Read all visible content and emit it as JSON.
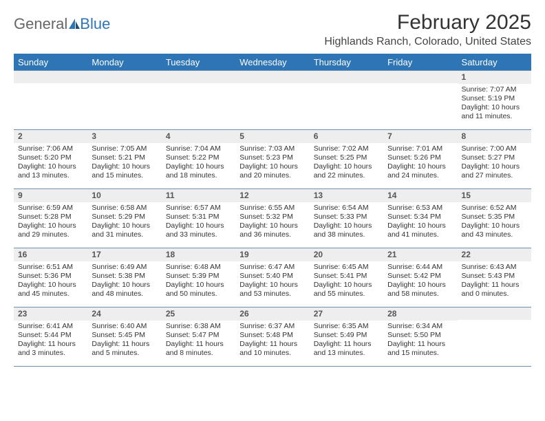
{
  "logo": {
    "text1": "General",
    "text2": "Blue"
  },
  "title": "February 2025",
  "location": "Highlands Ranch, Colorado, United States",
  "colors": {
    "header_bg": "#2e75b6",
    "header_text": "#ffffff",
    "row_border": "#6f8fae",
    "daynum_bg": "#eeeeee",
    "page_bg": "#ffffff",
    "text": "#333333"
  },
  "weekdays": [
    "Sunday",
    "Monday",
    "Tuesday",
    "Wednesday",
    "Thursday",
    "Friday",
    "Saturday"
  ],
  "weeks": [
    [
      {
        "n": "",
        "sunrise": "",
        "sunset": "",
        "daylight": ""
      },
      {
        "n": "",
        "sunrise": "",
        "sunset": "",
        "daylight": ""
      },
      {
        "n": "",
        "sunrise": "",
        "sunset": "",
        "daylight": ""
      },
      {
        "n": "",
        "sunrise": "",
        "sunset": "",
        "daylight": ""
      },
      {
        "n": "",
        "sunrise": "",
        "sunset": "",
        "daylight": ""
      },
      {
        "n": "",
        "sunrise": "",
        "sunset": "",
        "daylight": ""
      },
      {
        "n": "1",
        "sunrise": "Sunrise: 7:07 AM",
        "sunset": "Sunset: 5:19 PM",
        "daylight": "Daylight: 10 hours and 11 minutes."
      }
    ],
    [
      {
        "n": "2",
        "sunrise": "Sunrise: 7:06 AM",
        "sunset": "Sunset: 5:20 PM",
        "daylight": "Daylight: 10 hours and 13 minutes."
      },
      {
        "n": "3",
        "sunrise": "Sunrise: 7:05 AM",
        "sunset": "Sunset: 5:21 PM",
        "daylight": "Daylight: 10 hours and 15 minutes."
      },
      {
        "n": "4",
        "sunrise": "Sunrise: 7:04 AM",
        "sunset": "Sunset: 5:22 PM",
        "daylight": "Daylight: 10 hours and 18 minutes."
      },
      {
        "n": "5",
        "sunrise": "Sunrise: 7:03 AM",
        "sunset": "Sunset: 5:23 PM",
        "daylight": "Daylight: 10 hours and 20 minutes."
      },
      {
        "n": "6",
        "sunrise": "Sunrise: 7:02 AM",
        "sunset": "Sunset: 5:25 PM",
        "daylight": "Daylight: 10 hours and 22 minutes."
      },
      {
        "n": "7",
        "sunrise": "Sunrise: 7:01 AM",
        "sunset": "Sunset: 5:26 PM",
        "daylight": "Daylight: 10 hours and 24 minutes."
      },
      {
        "n": "8",
        "sunrise": "Sunrise: 7:00 AM",
        "sunset": "Sunset: 5:27 PM",
        "daylight": "Daylight: 10 hours and 27 minutes."
      }
    ],
    [
      {
        "n": "9",
        "sunrise": "Sunrise: 6:59 AM",
        "sunset": "Sunset: 5:28 PM",
        "daylight": "Daylight: 10 hours and 29 minutes."
      },
      {
        "n": "10",
        "sunrise": "Sunrise: 6:58 AM",
        "sunset": "Sunset: 5:29 PM",
        "daylight": "Daylight: 10 hours and 31 minutes."
      },
      {
        "n": "11",
        "sunrise": "Sunrise: 6:57 AM",
        "sunset": "Sunset: 5:31 PM",
        "daylight": "Daylight: 10 hours and 33 minutes."
      },
      {
        "n": "12",
        "sunrise": "Sunrise: 6:55 AM",
        "sunset": "Sunset: 5:32 PM",
        "daylight": "Daylight: 10 hours and 36 minutes."
      },
      {
        "n": "13",
        "sunrise": "Sunrise: 6:54 AM",
        "sunset": "Sunset: 5:33 PM",
        "daylight": "Daylight: 10 hours and 38 minutes."
      },
      {
        "n": "14",
        "sunrise": "Sunrise: 6:53 AM",
        "sunset": "Sunset: 5:34 PM",
        "daylight": "Daylight: 10 hours and 41 minutes."
      },
      {
        "n": "15",
        "sunrise": "Sunrise: 6:52 AM",
        "sunset": "Sunset: 5:35 PM",
        "daylight": "Daylight: 10 hours and 43 minutes."
      }
    ],
    [
      {
        "n": "16",
        "sunrise": "Sunrise: 6:51 AM",
        "sunset": "Sunset: 5:36 PM",
        "daylight": "Daylight: 10 hours and 45 minutes."
      },
      {
        "n": "17",
        "sunrise": "Sunrise: 6:49 AM",
        "sunset": "Sunset: 5:38 PM",
        "daylight": "Daylight: 10 hours and 48 minutes."
      },
      {
        "n": "18",
        "sunrise": "Sunrise: 6:48 AM",
        "sunset": "Sunset: 5:39 PM",
        "daylight": "Daylight: 10 hours and 50 minutes."
      },
      {
        "n": "19",
        "sunrise": "Sunrise: 6:47 AM",
        "sunset": "Sunset: 5:40 PM",
        "daylight": "Daylight: 10 hours and 53 minutes."
      },
      {
        "n": "20",
        "sunrise": "Sunrise: 6:45 AM",
        "sunset": "Sunset: 5:41 PM",
        "daylight": "Daylight: 10 hours and 55 minutes."
      },
      {
        "n": "21",
        "sunrise": "Sunrise: 6:44 AM",
        "sunset": "Sunset: 5:42 PM",
        "daylight": "Daylight: 10 hours and 58 minutes."
      },
      {
        "n": "22",
        "sunrise": "Sunrise: 6:43 AM",
        "sunset": "Sunset: 5:43 PM",
        "daylight": "Daylight: 11 hours and 0 minutes."
      }
    ],
    [
      {
        "n": "23",
        "sunrise": "Sunrise: 6:41 AM",
        "sunset": "Sunset: 5:44 PM",
        "daylight": "Daylight: 11 hours and 3 minutes."
      },
      {
        "n": "24",
        "sunrise": "Sunrise: 6:40 AM",
        "sunset": "Sunset: 5:45 PM",
        "daylight": "Daylight: 11 hours and 5 minutes."
      },
      {
        "n": "25",
        "sunrise": "Sunrise: 6:38 AM",
        "sunset": "Sunset: 5:47 PM",
        "daylight": "Daylight: 11 hours and 8 minutes."
      },
      {
        "n": "26",
        "sunrise": "Sunrise: 6:37 AM",
        "sunset": "Sunset: 5:48 PM",
        "daylight": "Daylight: 11 hours and 10 minutes."
      },
      {
        "n": "27",
        "sunrise": "Sunrise: 6:35 AM",
        "sunset": "Sunset: 5:49 PM",
        "daylight": "Daylight: 11 hours and 13 minutes."
      },
      {
        "n": "28",
        "sunrise": "Sunrise: 6:34 AM",
        "sunset": "Sunset: 5:50 PM",
        "daylight": "Daylight: 11 hours and 15 minutes."
      },
      {
        "n": "",
        "sunrise": "",
        "sunset": "",
        "daylight": ""
      }
    ]
  ]
}
